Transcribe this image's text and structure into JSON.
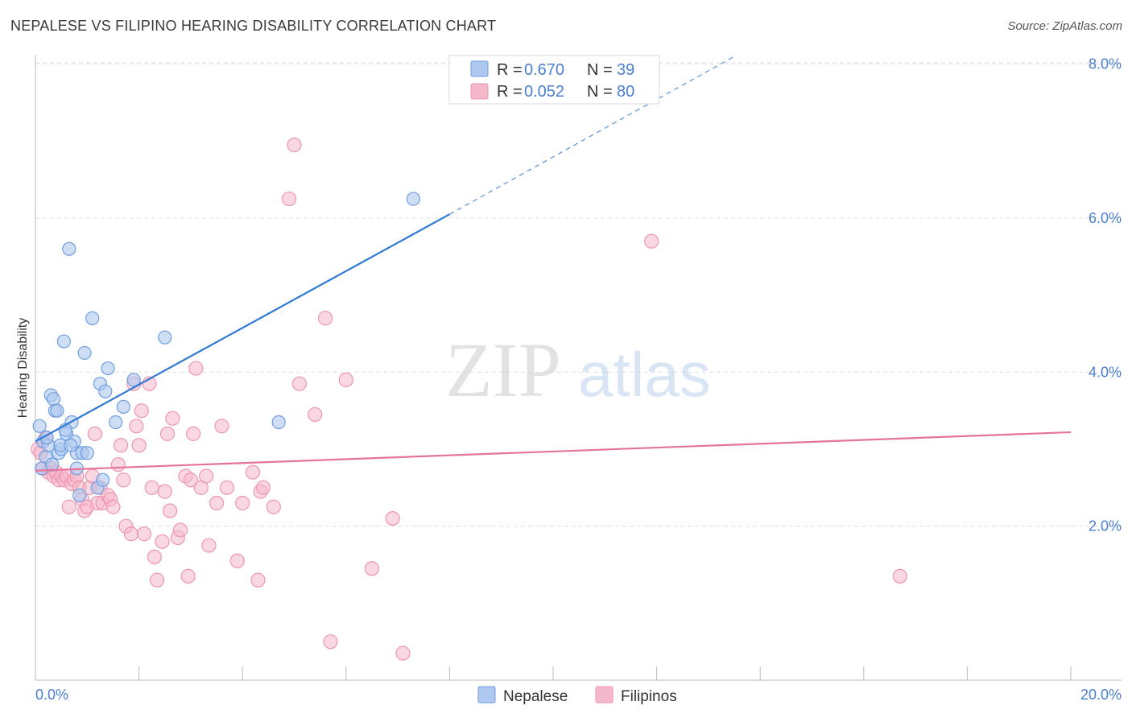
{
  "title": "NEPALESE VS FILIPINO HEARING DISABILITY CORRELATION CHART",
  "source": "Source: ZipAtlas.com",
  "watermark": {
    "zip": "ZIP",
    "atlas": "atlas"
  },
  "colors": {
    "nepalese_fill": "#aec8ef",
    "nepalese_stroke": "#6f9ee0",
    "nepalese_line": "#2f78d4",
    "filipino_fill": "#f5b8cb",
    "filipino_stroke": "#ee95b2",
    "filipino_line": "#e5739a",
    "tick": "#4a7fd0",
    "grid": "#dde1e8"
  },
  "legend": {
    "r_label": "R =",
    "n_label": "N =",
    "rows": [
      {
        "series": "Nepalese",
        "r": "0.670",
        "n": "39"
      },
      {
        "series": "Filipinos",
        "r": "0.052",
        "n": "80"
      }
    ]
  },
  "chart_data": {
    "type": "scatter",
    "title": "NEPALESE VS FILIPINO HEARING DISABILITY CORRELATION CHART",
    "xlabel": "",
    "ylabel": "Hearing Disability",
    "xlim": [
      0,
      20
    ],
    "ylim": [
      0,
      8.3
    ],
    "x_tick_labels": [
      "0.0%",
      "20.0%"
    ],
    "y_ticks": [
      2,
      4,
      6,
      8
    ],
    "y_tick_labels": [
      "2.0%",
      "4.0%",
      "6.0%",
      "8.0%"
    ],
    "series": [
      {
        "name": "Nepalese",
        "r": 0.67,
        "n": 39,
        "trend": {
          "x0": 0,
          "y0": 3.1,
          "x1": 8.0,
          "y1": 6.05,
          "dashed_to_x": 13.5,
          "dashed_to_y": 8.1
        },
        "points": [
          [
            0.08,
            3.3
          ],
          [
            0.15,
            3.1
          ],
          [
            0.2,
            2.9
          ],
          [
            0.25,
            3.05
          ],
          [
            0.3,
            3.7
          ],
          [
            0.35,
            3.65
          ],
          [
            0.38,
            3.5
          ],
          [
            0.42,
            3.5
          ],
          [
            0.45,
            2.95
          ],
          [
            0.5,
            3.0
          ],
          [
            0.55,
            4.4
          ],
          [
            0.6,
            3.2
          ],
          [
            0.65,
            5.6
          ],
          [
            0.7,
            3.35
          ],
          [
            0.75,
            3.1
          ],
          [
            0.8,
            2.95
          ],
          [
            0.8,
            2.75
          ],
          [
            0.85,
            2.4
          ],
          [
            0.9,
            2.95
          ],
          [
            0.95,
            4.25
          ],
          [
            1.0,
            2.95
          ],
          [
            1.1,
            4.7
          ],
          [
            1.2,
            2.5
          ],
          [
            1.25,
            3.85
          ],
          [
            1.3,
            2.6
          ],
          [
            1.35,
            3.75
          ],
          [
            1.4,
            4.05
          ],
          [
            1.55,
            3.35
          ],
          [
            1.7,
            3.55
          ],
          [
            1.9,
            3.9
          ],
          [
            2.5,
            4.45
          ],
          [
            4.7,
            3.35
          ],
          [
            7.3,
            6.25
          ],
          [
            0.12,
            2.75
          ],
          [
            0.22,
            3.15
          ],
          [
            0.32,
            2.8
          ],
          [
            0.48,
            3.05
          ],
          [
            0.58,
            3.25
          ],
          [
            0.68,
            3.05
          ]
        ]
      },
      {
        "name": "Filipinos",
        "r": 0.052,
        "n": 80,
        "trend": {
          "x0": 0,
          "y0": 2.72,
          "x1": 20,
          "y1": 3.22
        },
        "points": [
          [
            0.05,
            3.0
          ],
          [
            0.1,
            2.95
          ],
          [
            0.15,
            2.75
          ],
          [
            0.2,
            3.15
          ],
          [
            0.25,
            2.7
          ],
          [
            0.3,
            2.75
          ],
          [
            0.35,
            2.65
          ],
          [
            0.4,
            2.7
          ],
          [
            0.45,
            2.6
          ],
          [
            0.5,
            2.65
          ],
          [
            0.55,
            2.6
          ],
          [
            0.6,
            2.65
          ],
          [
            0.65,
            2.25
          ],
          [
            0.7,
            2.55
          ],
          [
            0.75,
            2.6
          ],
          [
            0.8,
            2.65
          ],
          [
            0.85,
            2.5
          ],
          [
            0.9,
            2.35
          ],
          [
            0.95,
            2.2
          ],
          [
            1.0,
            2.25
          ],
          [
            1.05,
            2.5
          ],
          [
            1.1,
            2.65
          ],
          [
            1.15,
            3.2
          ],
          [
            1.2,
            2.3
          ],
          [
            1.25,
            2.5
          ],
          [
            1.3,
            2.3
          ],
          [
            1.4,
            2.4
          ],
          [
            1.45,
            2.35
          ],
          [
            1.5,
            2.25
          ],
          [
            1.6,
            2.8
          ],
          [
            1.65,
            3.05
          ],
          [
            1.7,
            2.6
          ],
          [
            1.75,
            2.0
          ],
          [
            1.85,
            1.9
          ],
          [
            1.9,
            3.85
          ],
          [
            1.95,
            3.3
          ],
          [
            2.0,
            3.05
          ],
          [
            2.05,
            3.5
          ],
          [
            2.1,
            1.9
          ],
          [
            2.2,
            3.85
          ],
          [
            2.25,
            2.5
          ],
          [
            2.3,
            1.6
          ],
          [
            2.35,
            1.3
          ],
          [
            2.45,
            1.8
          ],
          [
            2.5,
            2.45
          ],
          [
            2.55,
            3.2
          ],
          [
            2.6,
            2.2
          ],
          [
            2.65,
            3.4
          ],
          [
            2.75,
            1.85
          ],
          [
            2.8,
            1.95
          ],
          [
            2.9,
            2.65
          ],
          [
            2.95,
            1.35
          ],
          [
            3.0,
            2.6
          ],
          [
            3.05,
            3.2
          ],
          [
            3.1,
            4.05
          ],
          [
            3.2,
            2.5
          ],
          [
            3.3,
            2.65
          ],
          [
            3.35,
            1.75
          ],
          [
            3.5,
            2.3
          ],
          [
            3.6,
            3.3
          ],
          [
            3.7,
            2.5
          ],
          [
            3.9,
            1.55
          ],
          [
            4.0,
            2.3
          ],
          [
            4.2,
            2.7
          ],
          [
            4.3,
            1.3
          ],
          [
            4.35,
            2.45
          ],
          [
            4.4,
            2.5
          ],
          [
            4.6,
            2.25
          ],
          [
            4.9,
            6.25
          ],
          [
            5.0,
            6.95
          ],
          [
            5.1,
            3.85
          ],
          [
            5.4,
            3.45
          ],
          [
            5.6,
            4.7
          ],
          [
            5.7,
            0.5
          ],
          [
            6.0,
            3.9
          ],
          [
            6.5,
            1.45
          ],
          [
            6.9,
            2.1
          ],
          [
            7.1,
            0.35
          ],
          [
            11.9,
            5.7
          ],
          [
            16.7,
            1.35
          ]
        ]
      }
    ]
  },
  "bottom_legend": [
    "Nepalese",
    "Filipinos"
  ]
}
